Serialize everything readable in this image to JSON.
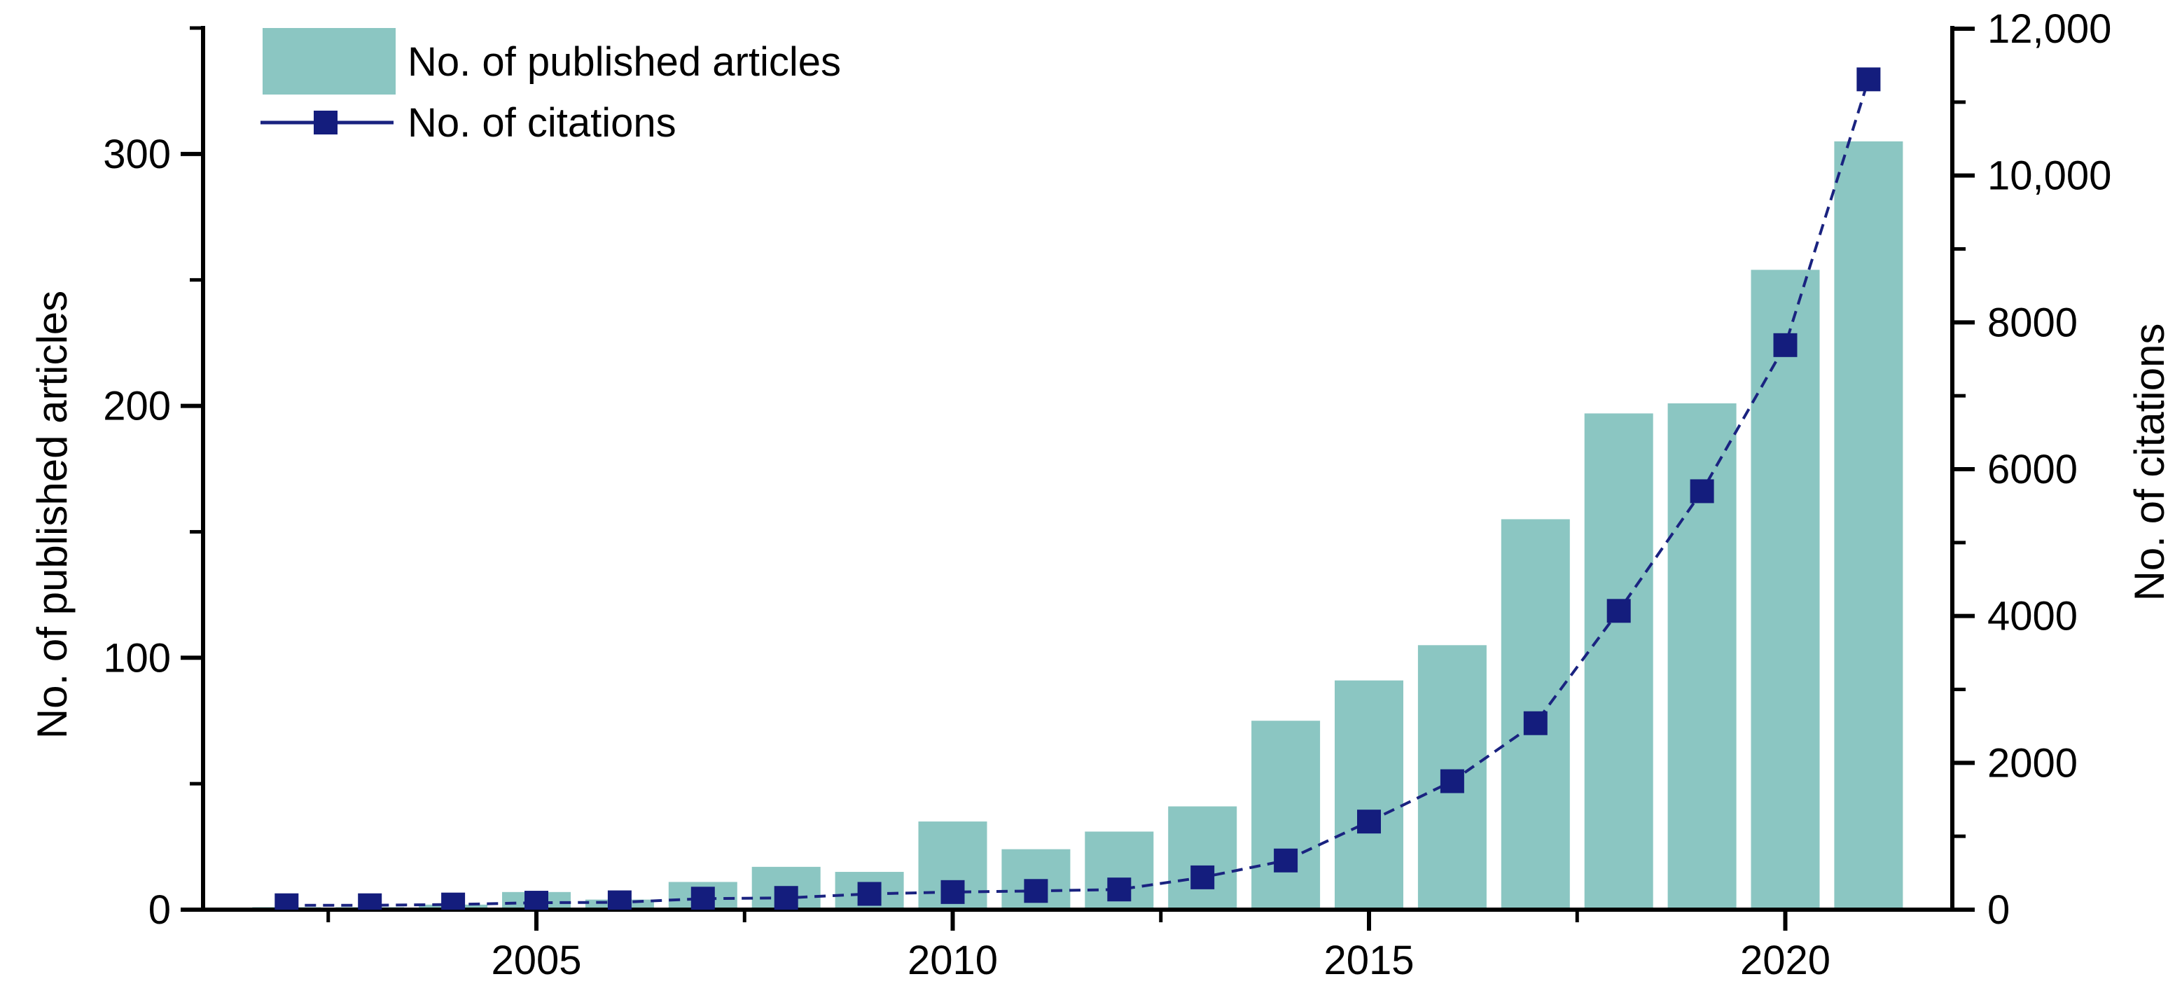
{
  "legend": {
    "articles_label": "No. of published articles",
    "citations_label": "No. of citations"
  },
  "axes": {
    "left_title": "No. of published articles",
    "right_title": "No. of citations",
    "x_tick_labels": [
      "2005",
      "2010",
      "2015",
      "2020"
    ],
    "left_tick_labels": [
      "0",
      "100",
      "200",
      "300"
    ],
    "right_tick_labels": [
      "0",
      "2000",
      "4000",
      "6000",
      "8000",
      "10,000",
      "12,000"
    ]
  },
  "chart_data": {
    "type": "combo",
    "x": [
      2002,
      2003,
      2004,
      2005,
      2006,
      2007,
      2008,
      2009,
      2010,
      2011,
      2012,
      2013,
      2014,
      2015,
      2016,
      2017,
      2018,
      2019,
      2020,
      2021
    ],
    "series": [
      {
        "name": "No. of published articles",
        "type": "bar",
        "axis": "left",
        "values": [
          1,
          1,
          2,
          7,
          4,
          11,
          17,
          15,
          35,
          24,
          31,
          41,
          75,
          91,
          105,
          155,
          197,
          201,
          254,
          305
        ]
      },
      {
        "name": "No. of citations",
        "type": "line",
        "axis": "right",
        "marker": "square",
        "values": [
          60,
          60,
          70,
          95,
          100,
          150,
          160,
          215,
          240,
          255,
          275,
          440,
          670,
          1200,
          1750,
          2540,
          4070,
          5700,
          7690,
          11310
        ]
      }
    ],
    "left_axis": {
      "label": "No. of published articles",
      "range": [
        0,
        350
      ],
      "major_ticks": [
        0,
        100,
        200,
        300
      ],
      "minor_ticks": [
        50,
        150,
        250,
        350
      ]
    },
    "right_axis": {
      "label": "No. of citations",
      "range": [
        0,
        12000
      ],
      "major_ticks": [
        0,
        2000,
        4000,
        6000,
        8000,
        10000,
        12000
      ],
      "minor_ticks": [
        1000,
        3000,
        5000,
        7000,
        9000,
        11000
      ]
    },
    "x_axis": {
      "range": [
        2001.5,
        2021.9
      ],
      "major_ticks": [
        2005,
        2010,
        2015,
        2020
      ],
      "minor_ticks": [
        2002.5,
        2007.5,
        2012.5,
        2017.5
      ]
    },
    "grid": false,
    "legend_position": "top-left",
    "colors": {
      "bar_fill": "#8bc6c2",
      "line": "#1a2380",
      "marker": "#141d7d",
      "axis": "#000000"
    }
  }
}
